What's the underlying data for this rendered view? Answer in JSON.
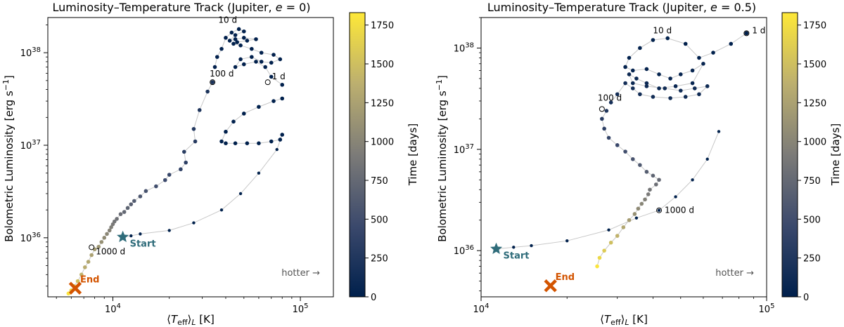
{
  "colors": {
    "dark": "#00204c",
    "mid": "#7c7b78",
    "bright": "#fee838",
    "start": "#2f6c7a",
    "end": "#d35400"
  },
  "chart_data": [
    {
      "type": "scatter",
      "title": "Luminosity–Temperature Track (Jupiter, e = 0)",
      "xlabel": "⟨Teff⟩L [K]",
      "ylabel": "Bolometric Luminosity [erg s⁻¹]",
      "xscale": "log",
      "yscale": "log",
      "xlim": [
        4500,
        150000
      ],
      "ylim": [
        2.3e+35,
        2.4e+38
      ],
      "xticks": [
        {
          "value": 10000,
          "base": "10",
          "exp": "4"
        },
        {
          "value": 100000,
          "base": "10",
          "exp": "5"
        }
      ],
      "yticks": [
        {
          "value": 1e+36,
          "base": "10",
          "exp": "36"
        },
        {
          "value": 1e+37,
          "base": "10",
          "exp": "37"
        },
        {
          "value": 1e+38,
          "base": "10",
          "exp": "38"
        }
      ],
      "colorbar": {
        "label": "Time [days]",
        "min": 0,
        "max": 1830,
        "ticks": [
          "0",
          "250",
          "500",
          "750",
          "1000",
          "1250",
          "1500",
          "1750"
        ],
        "colormap": "cividis"
      },
      "series": [
        {
          "x": [
            80000,
            78000,
            70000,
            60000,
            52000,
            45000,
            40000,
            38000,
            40000,
            44000,
            50000,
            60000,
            72000,
            80000
          ],
          "y": [
            1.3e+37,
            1.15e+37,
            1.1e+37,
            1.05e+37,
            1.05e+37,
            1.05e+37,
            1.05e+37,
            1.1e+37,
            1.4e+37,
            1.8e+37,
            2.2e+37,
            2.6e+37,
            3e+37,
            3.2e+37
          ],
          "t": [
            8,
            8,
            8,
            8,
            8,
            8,
            8,
            8,
            8,
            8,
            8,
            8,
            8,
            8
          ]
        },
        {
          "x": [
            80000,
            70000,
            65000,
            58000,
            50000,
            45000,
            48000,
            55000,
            62000,
            70000,
            78000,
            72000,
            62000,
            55000,
            48000,
            44000,
            46000,
            52000,
            58000,
            50000,
            45000,
            42000,
            45000,
            50000,
            47000,
            43000,
            40000,
            38000,
            36000,
            35000
          ],
          "y": [
            4.5e+37,
            5.5e+37,
            7e+37,
            8e+37,
            7.5e+37,
            7e+37,
            8.5e+37,
            9e+37,
            8e+37,
            7.8e+37,
            8.5e+37,
            9.5e+37,
            1e+38,
            1.1e+38,
            1.2e+38,
            1.25e+38,
            1.3e+38,
            1.35e+38,
            1.4e+38,
            1.45e+38,
            1.4e+38,
            1.35e+38,
            1.55e+38,
            1.7e+38,
            1.8e+38,
            1.65e+38,
            1.45e+38,
            1.1e+38,
            9e+37,
            7e+37
          ],
          "t": [
            12,
            12,
            12,
            12,
            12,
            12,
            12,
            12,
            12,
            12,
            12,
            12,
            12,
            12,
            12,
            12,
            12,
            12,
            12,
            12,
            12,
            12,
            12,
            12,
            12,
            12,
            12,
            12,
            12,
            12
          ]
        },
        {
          "x": [
            34000,
            32000,
            29000,
            27000,
            27500,
            24000,
            24500,
            23000,
            20000,
            19000,
            17000,
            15000,
            14000,
            13000,
            12500,
            12000,
            11500,
            11000,
            10500,
            10200,
            10000,
            9800,
            9600,
            9300,
            9000,
            8700,
            8400,
            8000,
            7700,
            7400,
            7100,
            6800,
            6500,
            6200,
            6000,
            5800
          ],
          "y": [
            4.8e+37,
            3.8e+37,
            2.4e+37,
            1.5e+37,
            1.1e+37,
            8.5e+36,
            6.5e+36,
            5.5e+36,
            4.8e+36,
            4.2e+36,
            3.6e+36,
            3.2e+36,
            2.8e+36,
            2.5e+36,
            2.3e+36,
            2.1e+36,
            1.9e+36,
            1.8e+36,
            1.6e+36,
            1.5e+36,
            1.4e+36,
            1.3e+36,
            1.2e+36,
            1.1e+36,
            1e+36,
            9e+35,
            8e+35,
            7.5e+35,
            6.5e+35,
            5.5e+35,
            4.8e+35,
            4e+35,
            3.4e+35,
            3e+35,
            2.7e+35,
            2.5e+35
          ],
          "t": [
            200,
            220,
            250,
            280,
            300,
            320,
            350,
            380,
            420,
            460,
            500,
            540,
            580,
            620,
            660,
            700,
            740,
            780,
            820,
            860,
            900,
            940,
            980,
            1020,
            1060,
            1100,
            1150,
            1200,
            1250,
            1300,
            1350,
            1400,
            1500,
            1600,
            1700,
            1800
          ]
        }
      ],
      "sparse_line": {
        "x": [
          80000,
          75000,
          60000,
          48000,
          38000,
          27000,
          20000,
          14000,
          12500,
          11500
        ],
        "y": [
          1.3e+37,
          9e+36,
          5e+36,
          3e+36,
          2e+36,
          1.45e+36,
          1.2e+36,
          1.1e+36,
          1.05e+36,
          1.02e+36
        ]
      },
      "annotations": [
        {
          "text": "10 d",
          "x": 36500,
          "y": 2.1e+38
        },
        {
          "text": "100 d",
          "x": 34000,
          "y": 4.8e+37,
          "circle": true,
          "label_dx": -4,
          "label_dy": -8
        },
        {
          "text": "1 d",
          "x": 67000,
          "y": 4.8e+37,
          "circle": true,
          "label_dx": 6,
          "label_dy": -4
        },
        {
          "text": "1000 d",
          "x": 7700,
          "y": 7.9e+35,
          "circle": true,
          "label_dx": 6,
          "label_dy": 10
        }
      ],
      "start": {
        "x": 11300,
        "y": 1.02e+36,
        "label": "Start"
      },
      "end": {
        "x": 6300,
        "y": 2.85e+35,
        "label": "End"
      },
      "note": "hotter →"
    },
    {
      "type": "scatter",
      "title": "Luminosity–Temperature Track (Jupiter, e = 0.5)",
      "xlabel": "⟨Teff⟩L [K]",
      "ylabel": "Bolometric Luminosity [erg s⁻¹]",
      "xscale": "log",
      "yscale": "log",
      "xlim": [
        10000,
        100000
      ],
      "ylim": [
        3.5e+35,
        2e+38
      ],
      "xticks": [
        {
          "value": 10000,
          "base": "10",
          "exp": "4"
        },
        {
          "value": 100000,
          "base": "10",
          "exp": "5"
        }
      ],
      "yticks": [
        {
          "value": 1e+36,
          "base": "10",
          "exp": "36"
        },
        {
          "value": 1e+37,
          "base": "10",
          "exp": "37"
        },
        {
          "value": 1e+38,
          "base": "10",
          "exp": "38"
        }
      ],
      "colorbar": {
        "label": "Time [days]",
        "min": 0,
        "max": 1830,
        "ticks": [
          "0",
          "250",
          "500",
          "750",
          "1000",
          "1250",
          "1500",
          "1750"
        ],
        "colormap": "cividis"
      },
      "series": [
        {
          "x": [
            85000,
            75000,
            65000,
            58000,
            52000,
            45000,
            40000,
            36000,
            33000,
            32000,
            34000,
            38000,
            42000,
            46000,
            50000,
            55000,
            60000,
            55000,
            48000,
            42000,
            38000,
            35000,
            33000,
            34000,
            38000,
            44000,
            50000,
            56000,
            62000,
            58000,
            52000,
            46000,
            40000,
            36000,
            34000,
            32000,
            30000,
            28500
          ],
          "y": [
            1.4e+38,
            1.1e+38,
            9e+37,
            8e+37,
            1.1e+38,
            1.25e+38,
            1.2e+38,
            1e+38,
            8e+37,
            6.5e+37,
            6e+37,
            6.2e+37,
            5.5e+37,
            5e+37,
            5.5e+37,
            6e+37,
            7e+37,
            4.5e+37,
            4.2e+37,
            4e+37,
            4.5e+37,
            5e+37,
            5.5e+37,
            4.5e+37,
            4.2e+37,
            4e+37,
            3.8e+37,
            4e+37,
            4.2e+37,
            3.5e+37,
            3.3e+37,
            3.2e+37,
            3.3e+37,
            3.5e+37,
            4e+37,
            4.5e+37,
            3.5e+37,
            2.9e+37
          ],
          "t": [
            5,
            8,
            10,
            12,
            15,
            18,
            20,
            22,
            25,
            28,
            30,
            35,
            40,
            45,
            50,
            55,
            60,
            65,
            70,
            75,
            80,
            85,
            90,
            95,
            100,
            105,
            110,
            115,
            120,
            125,
            130,
            135,
            140,
            145,
            150,
            155,
            160,
            170
          ]
        },
        {
          "x": [
            27500,
            26500,
            27000,
            28000,
            30000,
            32000,
            34000,
            36000,
            38000,
            40000,
            42000,
            41000,
            39000,
            38500,
            37500,
            36500,
            35500,
            34500,
            33000,
            31500,
            30000,
            28500,
            27000,
            26000,
            25500
          ],
          "y": [
            2.4e+37,
            2e+37,
            1.6e+37,
            1.3e+37,
            1.1e+37,
            9.5e+36,
            8e+36,
            7e+36,
            6e+36,
            5.5e+36,
            5e+36,
            4.5e+36,
            4e+36,
            3.6e+36,
            3.2e+36,
            2.9e+36,
            2.6e+36,
            2.3e+36,
            2e+36,
            1.7e+36,
            1.4e+36,
            1.2e+36,
            1e+36,
            8.5e+35,
            7e+35
          ],
          "t": [
            250,
            300,
            350,
            400,
            450,
            500,
            550,
            600,
            650,
            700,
            750,
            800,
            850,
            900,
            950,
            1000,
            1050,
            1100,
            1200,
            1300,
            1400,
            1500,
            1600,
            1700,
            1800
          ]
        }
      ],
      "sparse_line": {
        "x": [
          68000,
          62000,
          55000,
          48000,
          42000,
          35000,
          28000,
          20000,
          15000,
          13000,
          11300
        ],
        "y": [
          1.5e+37,
          8e+36,
          5e+36,
          3.4e+36,
          2.5e+36,
          2.1e+36,
          1.6e+36,
          1.25e+36,
          1.12e+36,
          1.08e+36,
          1.04e+36
        ]
      },
      "annotations": [
        {
          "text": "10 d",
          "x": 40000,
          "y": 1.4e+38
        },
        {
          "text": "1 d",
          "x": 85000,
          "y": 1.4e+38,
          "circle": true,
          "label_dx": 8,
          "label_dy": 0
        },
        {
          "text": "100 d",
          "x": 26500,
          "y": 2.5e+37,
          "circle": true,
          "label_dx": -6,
          "label_dy": -12
        },
        {
          "text": "1000 d",
          "x": 42000,
          "y": 2.5e+36,
          "circle": true,
          "label_dx": 8,
          "label_dy": 4
        }
      ],
      "start": {
        "x": 11300,
        "y": 1.04e+36,
        "label": "Start"
      },
      "end": {
        "x": 17500,
        "y": 4.5e+35,
        "label": "End"
      },
      "note": "hotter →"
    }
  ]
}
